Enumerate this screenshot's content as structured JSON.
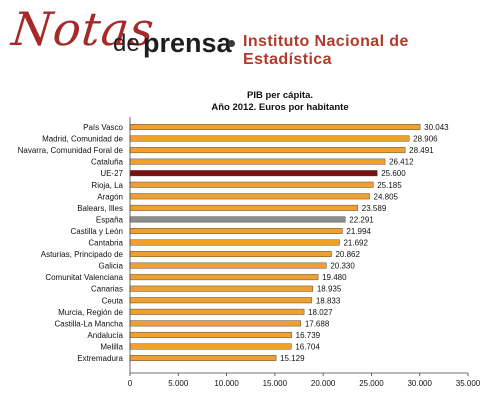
{
  "header": {
    "logo_notas": "Notas",
    "logo_de": "de",
    "logo_prensa": "prensa",
    "institution": "Instituto Nacional de Estadística"
  },
  "colors": {
    "bar_default": "#f0a030",
    "bar_eu": "#7a1010",
    "bar_spain": "#8c8c8c",
    "brand_red": "#b23a2a"
  },
  "chart_data": {
    "type": "bar",
    "orientation": "horizontal",
    "title_line1": "PIB per cápita.",
    "title_line2": "Año 2012.  Euros por habitante",
    "categories": [
      "País Vasco",
      "Madrid, Comunidad de",
      "Navarra, Comunidad Foral de",
      "Cataluña",
      "UE-27",
      "Rioja, La",
      "Aragón",
      "Balears, Illes",
      "España",
      "Castilla y León",
      "Cantabria",
      "Asturias, Principado de",
      "Galicia",
      "Comunitat Valenciana",
      "Canarias",
      "Ceuta",
      "Murcia, Región de",
      "Castilla-La Mancha",
      "Andalucía",
      "Melilla",
      "Extremadura"
    ],
    "values": [
      30043,
      28906,
      28491,
      26412,
      25600,
      25185,
      24805,
      23589,
      22291,
      21994,
      21692,
      20862,
      20330,
      19480,
      18935,
      18833,
      18027,
      17688,
      16739,
      16704,
      15129
    ],
    "value_labels": [
      "30.043",
      "28.906",
      "28.491",
      "26.412",
      "25.600",
      "25.185",
      "24.805",
      "23.589",
      "22.291",
      "21.994",
      "21.692",
      "20.862",
      "20.330",
      "19.480",
      "18.935",
      "18.833",
      "18.027",
      "17.688",
      "16.739",
      "16.704",
      "15.129"
    ],
    "highlight": {
      "UE-27": "bar_eu",
      "España": "bar_spain"
    },
    "xlim": [
      0,
      35000
    ],
    "xticks": [
      0,
      5000,
      10000,
      15000,
      20000,
      25000,
      30000,
      35000
    ],
    "xtick_labels": [
      "0",
      "5.000",
      "10.000",
      "15.000",
      "20.000",
      "25.000",
      "30.000",
      "35.000"
    ],
    "grid": false,
    "legend": "none"
  }
}
